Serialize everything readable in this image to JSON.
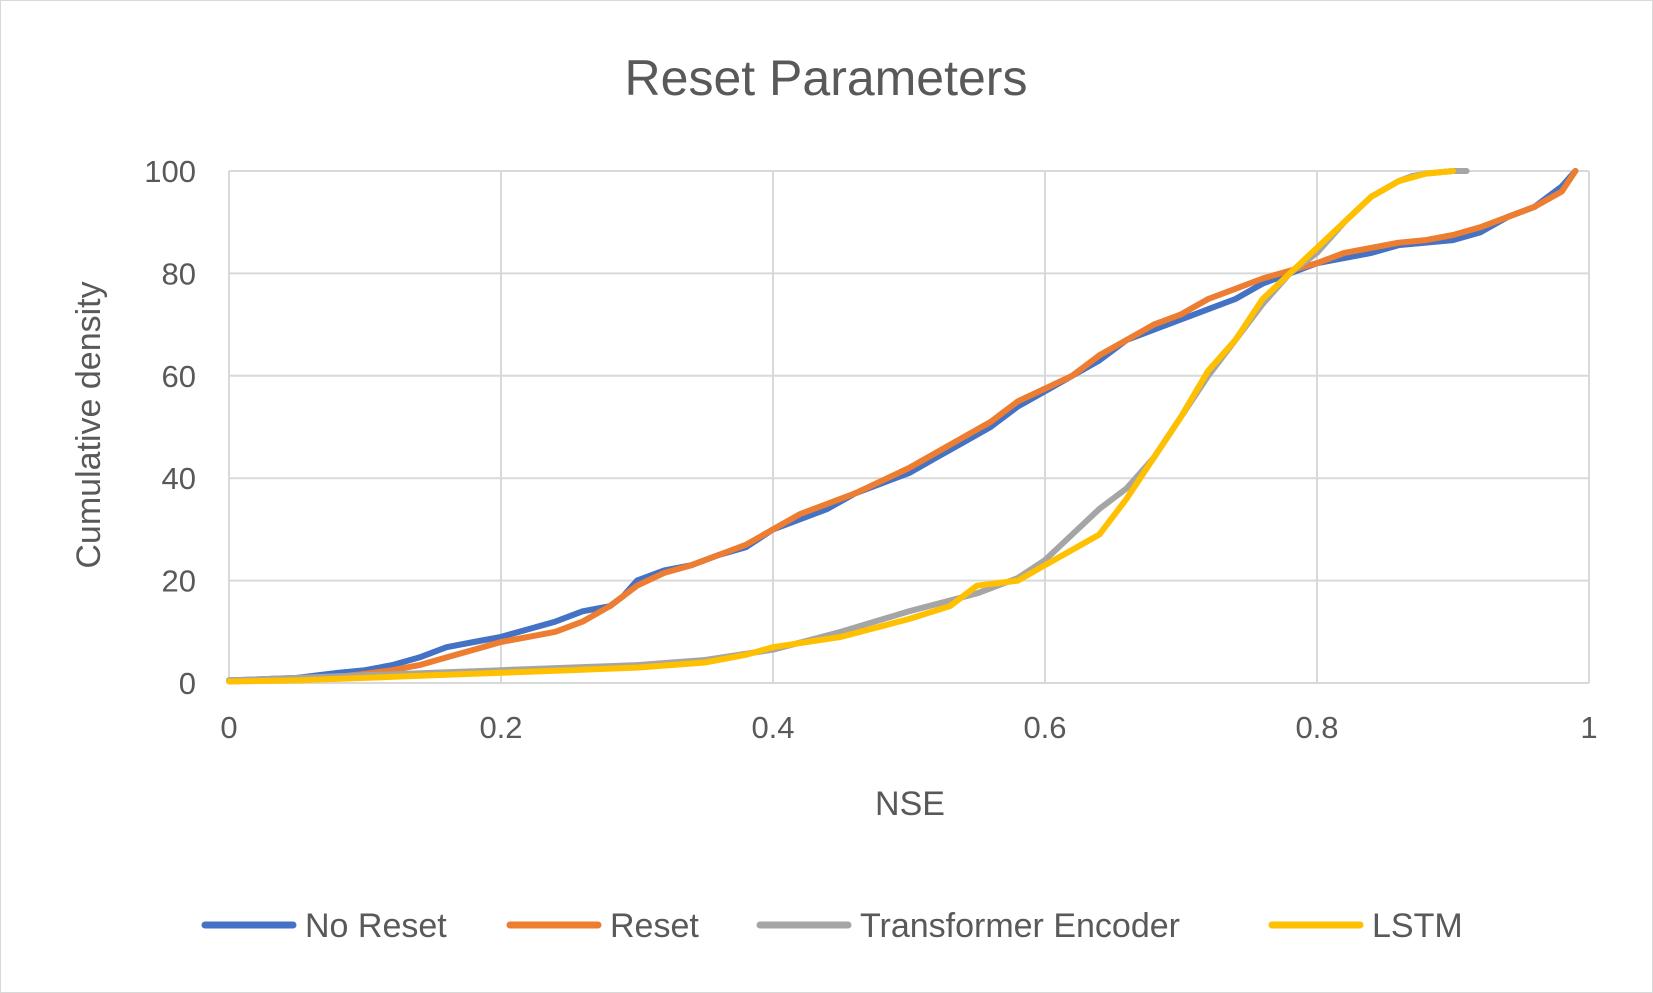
{
  "chart_data": {
    "type": "line",
    "title": "Reset Parameters",
    "xlabel": "NSE",
    "ylabel": "Cumulative density",
    "xlim": [
      0,
      1
    ],
    "ylim": [
      0,
      100
    ],
    "xticks": [
      "0",
      "0.2",
      "0.4",
      "0.6",
      "0.8",
      "1"
    ],
    "yticks": [
      "0",
      "20",
      "40",
      "60",
      "80",
      "100"
    ],
    "grid": true,
    "legend_position": "bottom",
    "series": [
      {
        "name": "No Reset",
        "color": "#4472C4",
        "x": [
          0,
          0.05,
          0.08,
          0.1,
          0.12,
          0.14,
          0.16,
          0.18,
          0.2,
          0.22,
          0.24,
          0.26,
          0.28,
          0.29,
          0.3,
          0.32,
          0.34,
          0.36,
          0.38,
          0.4,
          0.42,
          0.44,
          0.46,
          0.48,
          0.5,
          0.52,
          0.54,
          0.56,
          0.58,
          0.6,
          0.62,
          0.64,
          0.66,
          0.68,
          0.7,
          0.72,
          0.74,
          0.76,
          0.78,
          0.8,
          0.82,
          0.84,
          0.86,
          0.88,
          0.9,
          0.92,
          0.94,
          0.96,
          0.98,
          0.99
        ],
        "y": [
          0.5,
          1,
          2,
          2.5,
          3.5,
          5,
          7,
          8,
          9,
          10.5,
          12,
          14,
          15,
          17,
          20,
          22,
          23,
          25,
          26.5,
          30,
          32,
          34,
          37,
          39,
          41,
          44,
          47,
          50,
          54,
          57,
          60,
          63,
          67,
          69,
          71,
          73,
          75,
          78,
          80,
          82,
          83,
          84,
          85.5,
          86,
          86.5,
          88,
          91,
          93,
          97,
          100
        ]
      },
      {
        "name": "Reset",
        "color": "#ED7D31",
        "x": [
          0,
          0.05,
          0.08,
          0.1,
          0.12,
          0.14,
          0.16,
          0.18,
          0.2,
          0.22,
          0.24,
          0.26,
          0.28,
          0.29,
          0.3,
          0.32,
          0.34,
          0.36,
          0.38,
          0.4,
          0.42,
          0.44,
          0.46,
          0.48,
          0.5,
          0.52,
          0.54,
          0.56,
          0.58,
          0.6,
          0.62,
          0.64,
          0.66,
          0.68,
          0.7,
          0.72,
          0.74,
          0.76,
          0.78,
          0.8,
          0.82,
          0.84,
          0.86,
          0.88,
          0.9,
          0.92,
          0.94,
          0.96,
          0.98,
          0.99
        ],
        "y": [
          0.5,
          0.8,
          1.2,
          1.8,
          2.5,
          3.5,
          5,
          6.5,
          8,
          9,
          10,
          12,
          15,
          17,
          19,
          21.5,
          23,
          25,
          27,
          30,
          33,
          35,
          37,
          39.5,
          42,
          45,
          48,
          51,
          55,
          57.5,
          60,
          64,
          67,
          70,
          72,
          75,
          77,
          79,
          80.5,
          82,
          84,
          85,
          86,
          86.5,
          87.5,
          89,
          91,
          93,
          96,
          100
        ]
      },
      {
        "name": "Transformer Encoder",
        "color": "#A5A5A5",
        "x": [
          0,
          0.05,
          0.1,
          0.15,
          0.2,
          0.25,
          0.3,
          0.35,
          0.4,
          0.45,
          0.5,
          0.55,
          0.58,
          0.6,
          0.62,
          0.64,
          0.66,
          0.68,
          0.7,
          0.72,
          0.74,
          0.76,
          0.78,
          0.8,
          0.82,
          0.84,
          0.86,
          0.87,
          0.88,
          0.9,
          0.91
        ],
        "y": [
          0.5,
          1,
          1.5,
          2,
          2.5,
          3,
          3.5,
          4.5,
          6.5,
          10,
          14,
          17.5,
          20.5,
          24,
          29,
          34,
          38,
          44,
          52,
          60,
          67,
          74,
          80,
          84,
          90,
          95,
          98,
          99,
          99.5,
          100,
          100
        ]
      },
      {
        "name": "LSTM",
        "color": "#FFC000",
        "x": [
          0,
          0.05,
          0.1,
          0.15,
          0.2,
          0.25,
          0.3,
          0.35,
          0.38,
          0.4,
          0.45,
          0.5,
          0.53,
          0.55,
          0.58,
          0.6,
          0.62,
          0.64,
          0.66,
          0.68,
          0.7,
          0.72,
          0.74,
          0.76,
          0.78,
          0.8,
          0.82,
          0.84,
          0.86,
          0.88,
          0.9
        ],
        "y": [
          0.3,
          0.5,
          1,
          1.5,
          2,
          2.5,
          3,
          4,
          5.5,
          7,
          9,
          12.5,
          15,
          19,
          20,
          23,
          26,
          29,
          36,
          44,
          52,
          61,
          67,
          75,
          80,
          85,
          90,
          95,
          98,
          99.5,
          100
        ]
      }
    ]
  }
}
